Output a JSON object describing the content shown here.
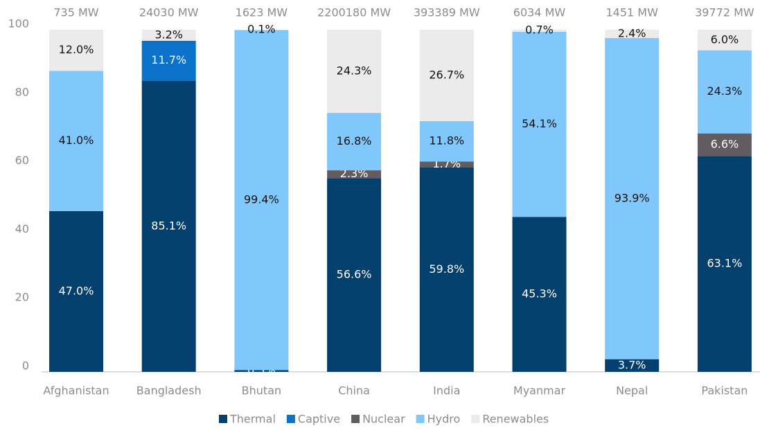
{
  "chart_data": {
    "type": "stacked_bar",
    "categories": [
      "Afghanistan",
      "Bangladesh",
      "Bhutan",
      "China",
      "India",
      "Myanmar",
      "Nepal",
      "Pakistan"
    ],
    "annotations": [
      "735 MW",
      "24030 MW",
      "1623 MW",
      "2200180 MW",
      "393389 MW",
      "6034 MW",
      "1451 MW",
      "39772 MW"
    ],
    "series": [
      {
        "name": "Thermal",
        "color": "#04406e",
        "values": [
          47.0,
          85.1,
          0.5,
          56.6,
          59.8,
          45.3,
          3.7,
          63.1
        ],
        "value_labels": [
          "47.0%",
          "85.1%",
          "0.5%",
          "56.6%",
          "59.8%",
          "45.3%",
          "3.7%",
          "63.1%"
        ]
      },
      {
        "name": "Captive",
        "color": "#0a72c8",
        "values": [
          null,
          11.7,
          null,
          null,
          null,
          null,
          null,
          null
        ],
        "value_labels": [
          null,
          "11.7%",
          null,
          null,
          null,
          null,
          null,
          null
        ]
      },
      {
        "name": "Nuclear",
        "color": "#625c60",
        "values": [
          null,
          null,
          null,
          2.3,
          1.7,
          null,
          null,
          6.6
        ],
        "value_labels": [
          null,
          null,
          null,
          "2.3%",
          "1.7%",
          null,
          null,
          "6.6%"
        ]
      },
      {
        "name": "Hydro",
        "color": "#80c8fb",
        "values": [
          41.0,
          null,
          99.4,
          16.8,
          11.8,
          54.1,
          93.9,
          24.3
        ],
        "value_labels": [
          "41.0%",
          null,
          "99.4%",
          "16.8%",
          "11.8%",
          "54.1%",
          "93.9%",
          "24.3%"
        ]
      },
      {
        "name": "Renewables",
        "color": "#ebebeb",
        "values": [
          12.0,
          3.2,
          0.1,
          24.3,
          26.7,
          0.7,
          2.4,
          6.0
        ],
        "value_labels": [
          "12.0%",
          "3.2%",
          "0.1%",
          "24.3%",
          "26.7%",
          "0.7%",
          "2.4%",
          "6.0%"
        ]
      }
    ],
    "ylim": [
      0,
      100
    ],
    "yticks": [
      0,
      20,
      40,
      60,
      80,
      100
    ],
    "grid": false,
    "legend": "bottom"
  }
}
